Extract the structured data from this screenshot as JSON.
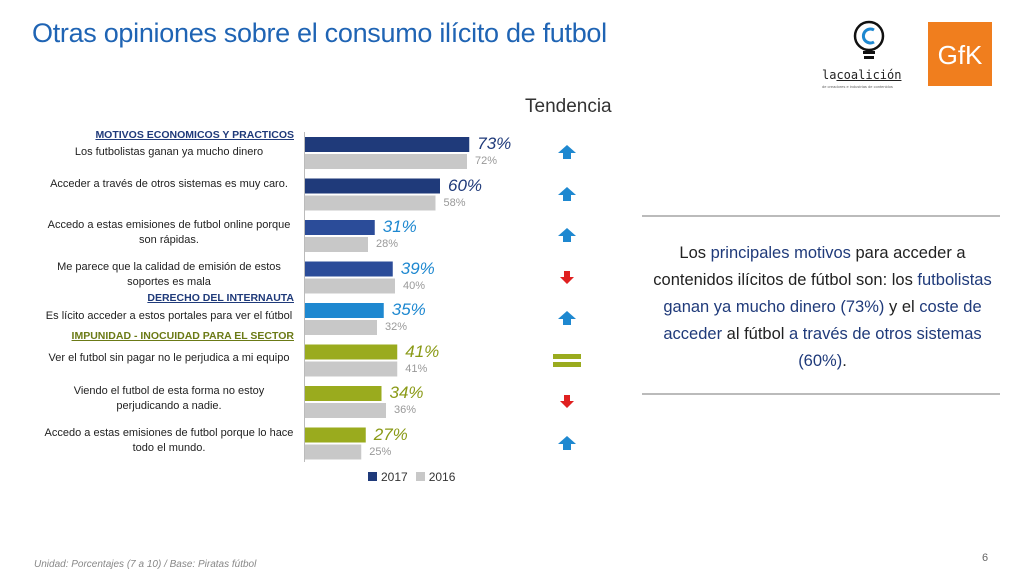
{
  "title": "Otras opiniones sobre el consumo ilícito de futbol",
  "logos": {
    "coalicion_name_pre": "la",
    "coalicion_name_main": "coalición",
    "coalicion_sub": "de creadores e industrias de contenidos",
    "gfk": "GfK"
  },
  "tendencia_header": "Tendencia",
  "sections": {
    "motivos": "MOTIVOS ECONOMICOS Y PRACTICOS",
    "derecho": "DERECHO DEL INTERNAUTA",
    "impunidad": "IMPUNIDAD - INOCUIDAD PARA EL SECTOR"
  },
  "chart_data": {
    "type": "bar",
    "orientation": "horizontal",
    "categories": [
      "Los futbolistas ganan ya mucho dinero",
      "Acceder a través de otros sistemas es muy caro.",
      "Accedo a estas emisiones de futbol online porque son rápidas.",
      "Me parece que la calidad de emisión de estos soportes es mala",
      "Es lícito acceder a estos portales para ver el fútbol",
      "Ver el futbol sin pagar no le perjudica a mi equipo",
      "Viendo el futbol de esta forma no estoy perjudicando a nadie.",
      "Accedo a estas emisiones de futbol porque lo hace todo el mundo."
    ],
    "series": [
      {
        "name": "2017",
        "values": [
          73,
          60,
          31,
          39,
          35,
          41,
          34,
          27
        ]
      },
      {
        "name": "2016",
        "values": [
          72,
          58,
          28,
          40,
          32,
          41,
          36,
          25
        ]
      }
    ],
    "labels_2017": [
      "73%",
      "60%",
      "31%",
      "39%",
      "35%",
      "41%",
      "34%",
      "27%"
    ],
    "labels_2016": [
      "72%",
      "58%",
      "28%",
      "40%",
      "32%",
      "41%",
      "36%",
      "25%"
    ],
    "bar_colors_2017": [
      "#1f3a7a",
      "#1f3a7a",
      "#2b4c99",
      "#2b4c99",
      "#1e88d0",
      "#9aab1e",
      "#9aab1e",
      "#9aab1e"
    ],
    "label_colors_2017": [
      "#1f3a7a",
      "#1f3a7a",
      "#1e88d0",
      "#1e88d0",
      "#1e88d0",
      "#8a9a16",
      "#8a9a16",
      "#8a9a16"
    ],
    "color_2016": "#c8c8c8",
    "trend": [
      "up",
      "up",
      "up",
      "down",
      "up",
      "equal",
      "down",
      "up"
    ],
    "legend": [
      "2017",
      "2016"
    ],
    "legend_colors": [
      "#1f3a7a",
      "#c8c8c8"
    ],
    "xlim": [
      0,
      100
    ]
  },
  "summary": {
    "p1": "Los ",
    "h1": "principales motivos",
    "p2": " para acceder a contenidos ilícitos de fútbol son: los ",
    "h2": "futbolistas ganan ya mucho dinero (73%)",
    "p3": " y el ",
    "h3": "coste de acceder",
    "p4": " al fútbol ",
    "h4": "a través de otros sistemas (60%)",
    "p5": "."
  },
  "footer": "Unidad: Porcentajes (7 a 10) / Base: Piratas fútbol",
  "page_number": "6"
}
